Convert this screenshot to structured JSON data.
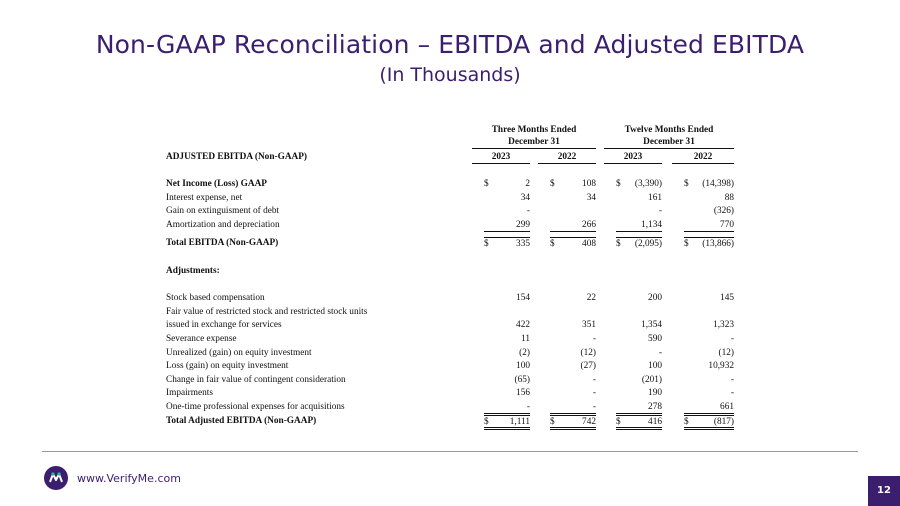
{
  "header": {
    "title": "Non-GAAP Reconciliation – EBITDA and Adjusted EBITDA",
    "subtitle": "(In Thousands)"
  },
  "table": {
    "section_label": "ADJUSTED EBITDA (Non-GAAP)",
    "group_three": [
      "Three Months Ended",
      "December 31"
    ],
    "group_twelve": [
      "Twelve Months Ended",
      "December 31"
    ],
    "years": [
      "2023",
      "2022",
      "2023",
      "2022"
    ],
    "currency": "$",
    "rows": [
      {
        "label": "Net Income (Loss) GAAP",
        "values": [
          "2",
          "108",
          "(3,390)",
          "(14,398)"
        ]
      },
      {
        "label": "Interest expense, net",
        "values": [
          "34",
          "34",
          "161",
          "88"
        ]
      },
      {
        "label": "Gain on extinguisment of debt",
        "values": [
          "-",
          "",
          "-",
          "(326)"
        ]
      },
      {
        "label": "Amortization and depreciation",
        "values": [
          "299",
          "266",
          "1,134",
          "770"
        ]
      },
      {
        "label": "Total EBITDA (Non-GAAP)",
        "values": [
          "335",
          "408",
          "(2,095)",
          "(13,866)"
        ]
      },
      {
        "label": "Adjustments:"
      },
      {
        "label": "Stock based compensation",
        "values": [
          "154",
          "22",
          "200",
          "145"
        ]
      },
      {
        "label": "Fair value of restricted stock and restricted stock units"
      },
      {
        "label": "issued in exchange for services",
        "values": [
          "422",
          "351",
          "1,354",
          "1,323"
        ]
      },
      {
        "label": "Severance expense",
        "values": [
          "11",
          "-",
          "590",
          "-"
        ]
      },
      {
        "label": "Unrealized (gain) on equity investment",
        "values": [
          "(2)",
          "(12)",
          "-",
          "(12)"
        ]
      },
      {
        "label": "Loss (gain) on equity investment",
        "values": [
          "100",
          "(27)",
          "100",
          "10,932"
        ]
      },
      {
        "label": "Change in fair value of contingent consideration",
        "values": [
          "(65)",
          "-",
          "(201)",
          "-"
        ]
      },
      {
        "label": "Impairments",
        "values": [
          "156",
          "-",
          "190",
          "-"
        ]
      },
      {
        "label": "One-time professional expenses for acquisitions",
        "values": [
          "-",
          "-",
          "278",
          "661"
        ]
      },
      {
        "label": "Total Adjusted EBITDA (Non-GAAP)",
        "values": [
          "1,111",
          "742",
          "416",
          "(817)"
        ]
      }
    ]
  },
  "footer": {
    "url": "www.VerifyMe.com",
    "page_number": "12",
    "brand_color": "#3b1f6e"
  }
}
